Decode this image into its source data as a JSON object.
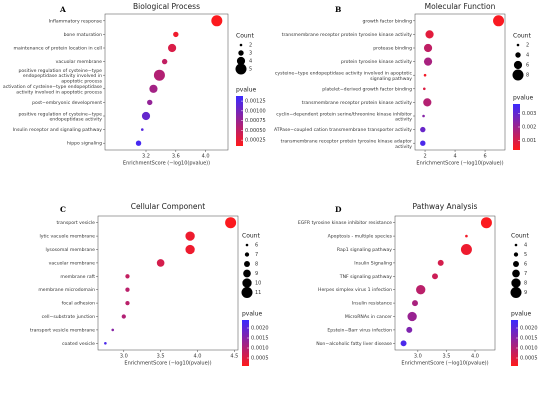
{
  "chart_data": [
    {
      "type": "bubble",
      "label": "A",
      "title": "Biological Process",
      "categories": [
        "Inflammatory response",
        "bone maturation",
        "maintenance of protein location in cell",
        "vacuolar membrane",
        "positive regulation of cysteine−type endopeptidase activity involved in apoptotic process",
        "activation of cysteine−type endopeptidase activity involved in apoptotic process",
        "post−embryonic development",
        "positive regulation of cysteine−type endopeptidase activity",
        "Insulin receptor and signaling pathway",
        "hippo signaling"
      ],
      "x": [
        4.15,
        3.6,
        3.55,
        3.45,
        3.38,
        3.3,
        3.25,
        3.2,
        3.15,
        3.1
      ],
      "counts": [
        5,
        3,
        4,
        3,
        5,
        4,
        3,
        4,
        2,
        3
      ],
      "pvalues": [
        0.00012,
        0.0002,
        0.00035,
        0.0005,
        0.0006,
        0.0007,
        0.0008,
        0.0011,
        0.0012,
        0.0013
      ],
      "xlim": [
        2.65,
        4.3
      ],
      "xticks": [
        3.2,
        3.6,
        {
          "value": 4,
          "label": "4.0"
        }
      ],
      "x_label": "EnrichmentScore (−log10(pvalue))",
      "size_title": "Count",
      "size_ticks": [
        2,
        3,
        4,
        5
      ],
      "color_title": "pvalue",
      "clim": [
        0.0001,
        0.00138
      ],
      "cticks": [
        0.00125,
        {
          "value": 0.001,
          "label": "0.00100"
        },
        0.00075,
        {
          "value": 0.0005,
          "label": "0.00050"
        },
        0.00025
      ],
      "cmap": [
        "#ff1a1a",
        "#3a2aff"
      ]
    },
    {
      "type": "bubble",
      "label": "B",
      "title": "Molecular Function",
      "categories": [
        "growth factor binding",
        "transmembrane receptor protein tyrosine kinase activity",
        "protease binding",
        "protein tyrosine kinase activity",
        "cysteine−type endopeptidase activity involved in apoptotic signaling pathway",
        "platelet−derived growth factor binding",
        "transmembrane receptor protein kinase activity",
        "cyclin−dependent protein serine/threonine kinase inhibitor activity",
        "ATPase−coupled cation transmembrane transporter activity",
        "transmembrane receptor protein tyrosine kinase adaptor activity"
      ],
      "x": [
        6.9,
        2.3,
        2.2,
        2.2,
        2.0,
        1.95,
        2.15,
        1.9,
        1.85,
        1.85
      ],
      "counts": [
        8,
        6,
        6,
        6,
        2,
        2,
        6,
        2,
        4,
        4
      ],
      "pvalues": [
        0.0004,
        0.0008,
        0.0014,
        0.0018,
        0.0005,
        0.0009,
        0.0016,
        0.0024,
        0.0029,
        0.0034
      ],
      "xlim": [
        1.33,
        7.33
      ],
      "xticks": [
        2,
        4,
        6
      ],
      "x_label": "EnrichmentScore (−log10(pvalue))",
      "size_title": "Count",
      "size_ticks": [
        2,
        4,
        6,
        8
      ],
      "color_title": "pvalue",
      "clim": [
        0.0003,
        0.0037
      ],
      "cticks": [
        0.003,
        0.002,
        0.001
      ],
      "cmap": [
        "#ff1a1a",
        "#3a2aff"
      ]
    },
    {
      "type": "bubble",
      "label": "C",
      "title": "Cellular Component",
      "categories": [
        "transport vesicle",
        "lytic vacuole membrane",
        "lysosomal membrane",
        "vacuolar membrane",
        "membrane raft",
        "membrane microdomain",
        "focal adhesion",
        "cell−substrate junction",
        "transport vesicle membrane",
        "coated vesicle"
      ],
      "x": [
        4.45,
        3.9,
        3.9,
        3.5,
        3.05,
        3.05,
        3.05,
        3.0,
        2.85,
        2.75
      ],
      "counts": [
        11,
        10,
        10,
        9,
        7,
        7,
        7,
        7,
        6,
        6
      ],
      "pvalues": [
        0.00015,
        0.0003,
        0.0003,
        0.0006,
        0.0008,
        0.0009,
        0.0009,
        0.001,
        0.0015,
        0.0022
      ],
      "xlim": [
        2.65,
        4.55
      ],
      "xticks": [
        {
          "value": 3,
          "label": "3.0"
        },
        3.5,
        {
          "value": 4,
          "label": "4.0"
        },
        4.5
      ],
      "x_label": "EnrichmentScore (−log10(pvalue))",
      "size_title": "Count",
      "size_ticks": [
        6,
        7,
        8,
        9,
        10,
        11
      ],
      "color_title": "pvalue",
      "clim": [
        0.0001,
        0.0024
      ],
      "cticks": [
        {
          "value": 0.002,
          "label": "0.0020"
        },
        0.0015,
        {
          "value": 0.001,
          "label": "0.0010"
        },
        0.0005
      ],
      "cmap": [
        "#ff1a1a",
        "#3a2aff"
      ]
    },
    {
      "type": "bubble",
      "label": "D",
      "title": "Pathway Analysis",
      "categories": [
        "EGFR tyrosine kinase inhibitor resistance",
        "Apoptosis - multiple species",
        "Rap1 signaling pathway",
        "Insulin Signaling",
        "TNF signaling pathway",
        "Herpes simplex virus 1 infection",
        "Insulin resistance",
        "MicroRNAs in cancer",
        "Epstein−Barr virus infection",
        "Non−alcoholic fatty liver disease"
      ],
      "x": [
        4.2,
        3.85,
        3.85,
        3.4,
        3.3,
        3.05,
        2.95,
        2.9,
        2.85,
        2.75
      ],
      "counts": [
        9,
        4,
        9,
        6,
        6,
        8,
        6,
        8,
        6,
        6
      ],
      "pvalues": [
        0.00015,
        0.00025,
        0.0003,
        0.0006,
        0.0007,
        0.0009,
        0.0011,
        0.0013,
        0.0016,
        0.0022
      ],
      "xlim": [
        2.6,
        4.35
      ],
      "xticks": [
        {
          "value": 3,
          "label": "3.0"
        },
        3.5,
        {
          "value": 4,
          "label": "4.0"
        }
      ],
      "x_label": "EnrichmentScore (−log10(pvalue))",
      "size_title": "Count",
      "size_ticks": [
        4,
        5,
        6,
        7,
        8,
        9
      ],
      "color_title": "pvalue",
      "clim": [
        0.0001,
        0.0024
      ],
      "cticks": [
        {
          "value": 0.002,
          "label": "0.0020"
        },
        0.0015,
        {
          "value": 0.001,
          "label": "0.0010"
        },
        0.0005
      ],
      "cmap": [
        "#ff1a1a",
        "#3a2aff"
      ]
    }
  ]
}
